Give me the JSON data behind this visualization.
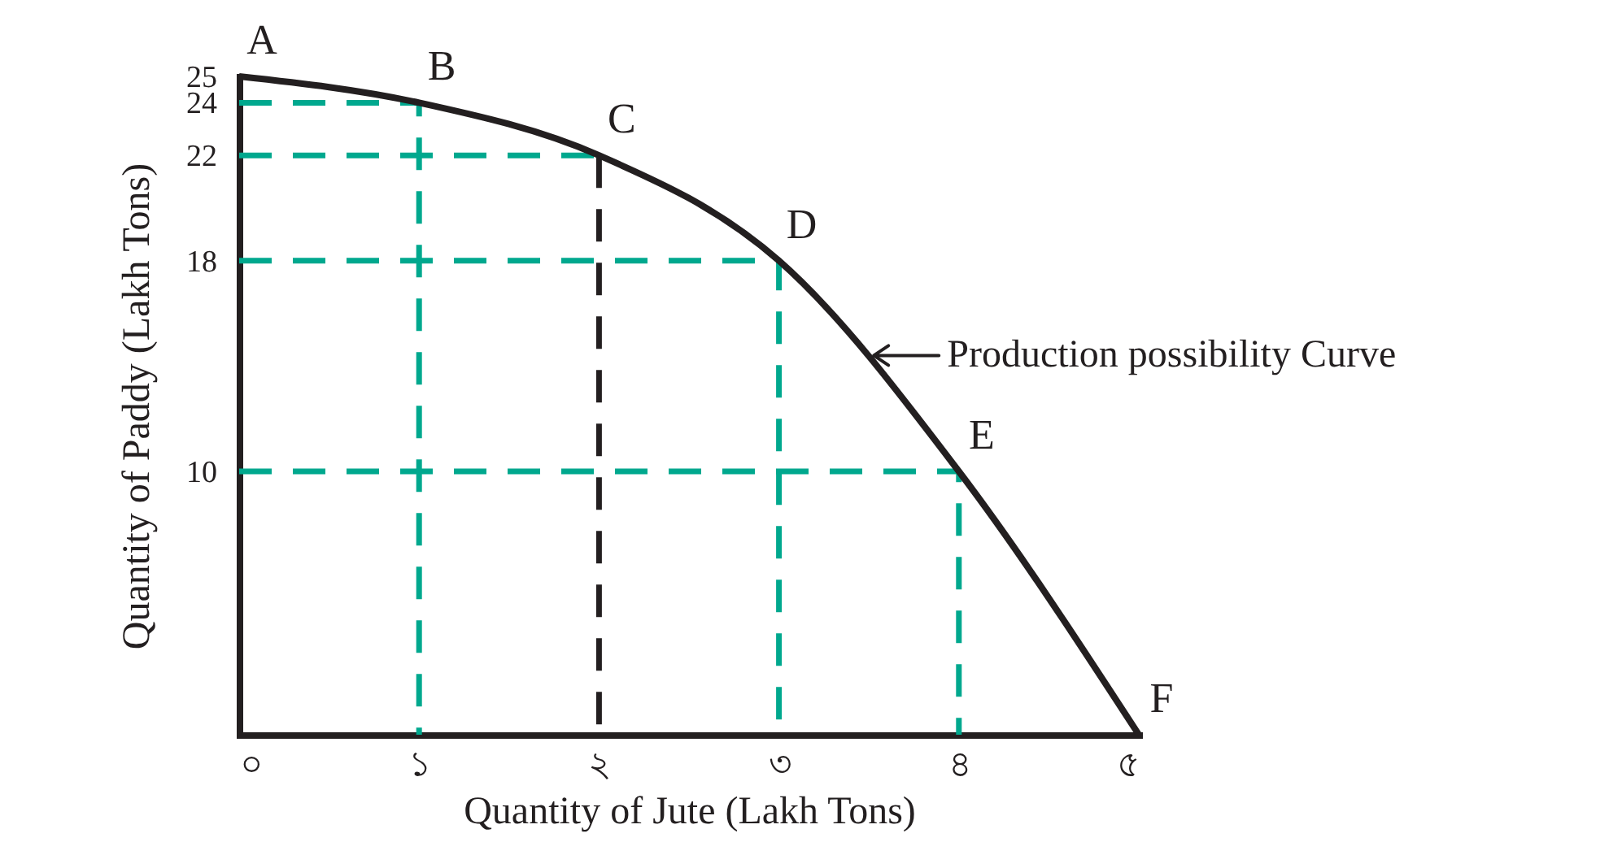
{
  "chart_data": {
    "type": "line",
    "xlabel": "Quantity of Jute (Lakh Tons)",
    "ylabel": "Quantity of Paddy (Lakh Tons)",
    "xlim": [
      0,
      5
    ],
    "ylim": [
      0,
      25
    ],
    "xticks": [
      {
        "value": 0,
        "label": "০"
      },
      {
        "value": 1,
        "label": "১"
      },
      {
        "value": 2,
        "label": "২"
      },
      {
        "value": 3,
        "label": "৩"
      },
      {
        "value": 4,
        "label": "৪"
      },
      {
        "value": 5,
        "label": "৫"
      }
    ],
    "yticks": [
      10,
      18,
      22,
      24,
      25
    ],
    "grid": false,
    "series": [
      {
        "color": "#00a88e",
        "line_style": "dashed",
        "x": [
          0,
          1,
          1
        ],
        "values": [
          24,
          24,
          0
        ]
      },
      {
        "color": "#00a88e",
        "line_style": "dashed",
        "x": [
          0,
          2
        ],
        "values": [
          22,
          22
        ]
      },
      {
        "color": "#231f20",
        "line_style": "dashed",
        "x": [
          2,
          2
        ],
        "values": [
          22,
          0
        ]
      },
      {
        "color": "#00a88e",
        "line_style": "dashed",
        "x": [
          0,
          3,
          3
        ],
        "values": [
          18,
          18,
          0
        ]
      },
      {
        "color": "#00a88e",
        "line_style": "dashed",
        "x": [
          0,
          4,
          4
        ],
        "values": [
          10,
          10,
          0
        ]
      },
      {
        "color": "#231f20",
        "line_style": "solid",
        "x": [
          0,
          1,
          2,
          3,
          4,
          5
        ],
        "values": [
          25,
          24,
          22,
          18,
          10,
          0
        ]
      }
    ],
    "annotations": [
      {
        "text": "A",
        "x": 0,
        "y": 25
      },
      {
        "text": "B",
        "x": 1,
        "y": 24
      },
      {
        "text": "C",
        "x": 2,
        "y": 22
      },
      {
        "text": "D",
        "x": 3,
        "y": 18
      },
      {
        "text": "E",
        "x": 4,
        "y": 10
      },
      {
        "text": "F",
        "x": 5,
        "y": 0
      },
      {
        "text": "Production possibility Curve",
        "x": 3.5,
        "y": 14.4
      }
    ]
  }
}
